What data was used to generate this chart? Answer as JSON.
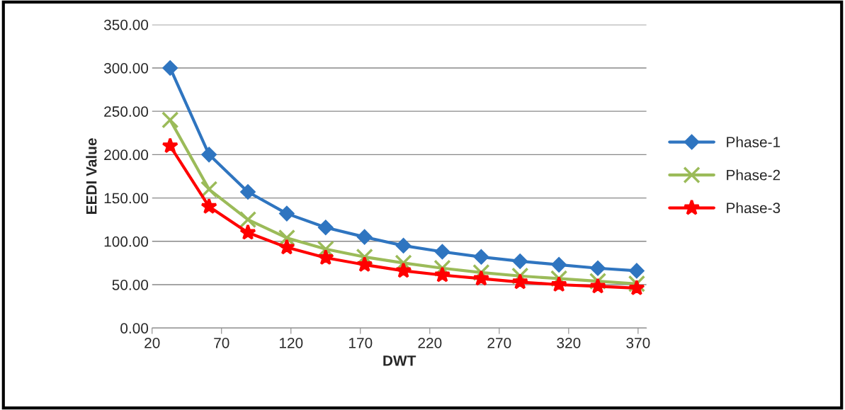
{
  "chart_data": {
    "type": "line",
    "xlabel": "DWT",
    "ylabel": "EEDI Value",
    "x": [
      33,
      61,
      89,
      117,
      145,
      173,
      201,
      229,
      257,
      285,
      313,
      341,
      369
    ],
    "series": [
      {
        "name": "Phase-1",
        "color": "#2f75c0",
        "marker": "diamond",
        "values": [
          300,
          200,
          157,
          132,
          116,
          105,
          95,
          88,
          82,
          77,
          73,
          69,
          66
        ]
      },
      {
        "name": "Phase-2",
        "color": "#9bbb59",
        "marker": "cross",
        "values": [
          240,
          160,
          125,
          104,
          91,
          82,
          75,
          69,
          64,
          60,
          57,
          54,
          51
        ]
      },
      {
        "name": "Phase-3",
        "color": "#ff0000",
        "marker": "star",
        "values": [
          210,
          140,
          110,
          93,
          81,
          73,
          66,
          61,
          57,
          53,
          50,
          48,
          46
        ]
      }
    ],
    "xlim": [
      20,
      376
    ],
    "xticks": [
      20,
      70,
      120,
      170,
      220,
      270,
      320,
      370
    ],
    "ylim": [
      0,
      350
    ],
    "yticks": [
      {
        "value": 0,
        "label": "0.00"
      },
      {
        "value": 50,
        "label": "50.00"
      },
      {
        "value": 100,
        "label": "100.00"
      },
      {
        "value": 150,
        "label": "150.00"
      },
      {
        "value": 200,
        "label": "200.00"
      },
      {
        "value": 250,
        "label": "250.00"
      },
      {
        "value": 300,
        "label": "300.00"
      },
      {
        "value": 350,
        "label": "350.00"
      }
    ],
    "grid": "y",
    "legend": "right"
  }
}
